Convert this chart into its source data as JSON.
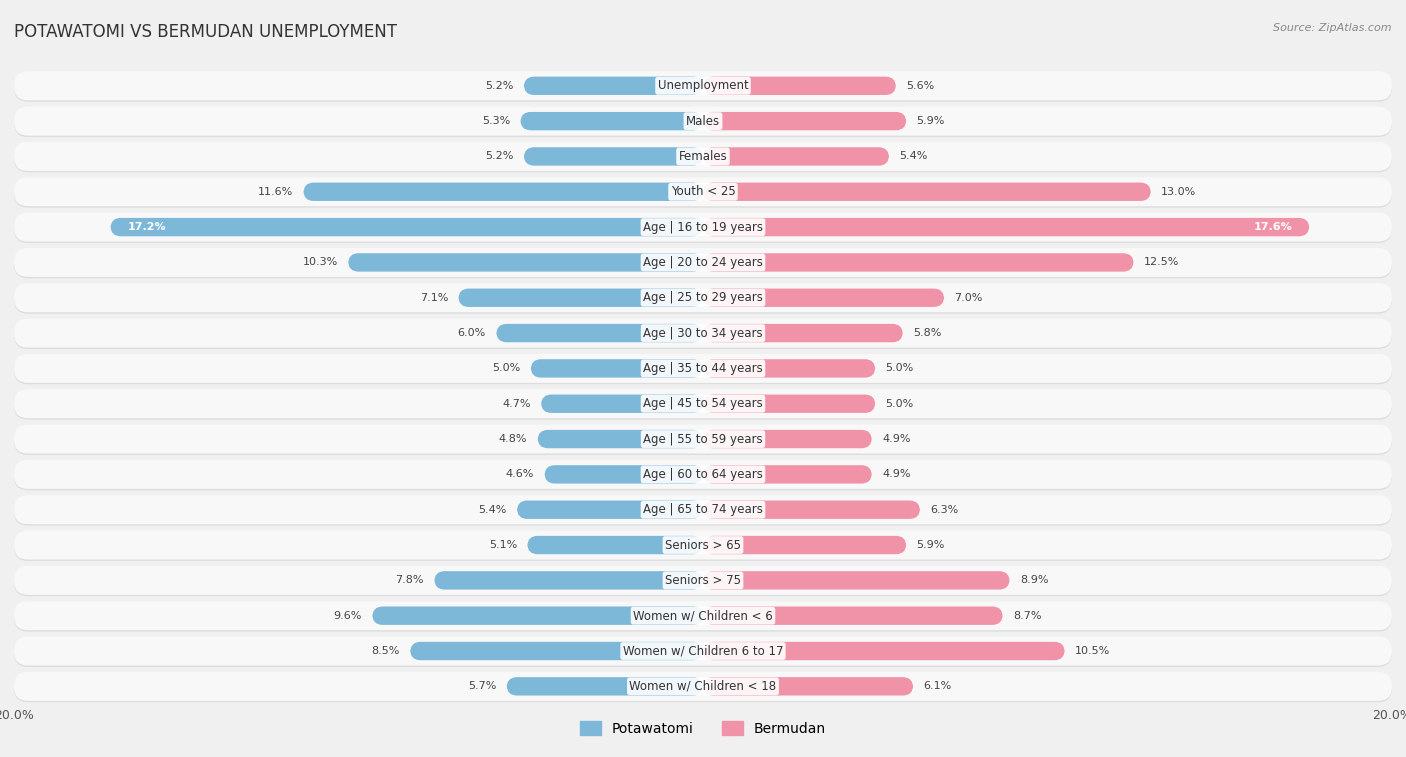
{
  "title": "POTAWATOMI VS BERMUDAN UNEMPLOYMENT",
  "source": "Source: ZipAtlas.com",
  "categories": [
    "Unemployment",
    "Males",
    "Females",
    "Youth < 25",
    "Age | 16 to 19 years",
    "Age | 20 to 24 years",
    "Age | 25 to 29 years",
    "Age | 30 to 34 years",
    "Age | 35 to 44 years",
    "Age | 45 to 54 years",
    "Age | 55 to 59 years",
    "Age | 60 to 64 years",
    "Age | 65 to 74 years",
    "Seniors > 65",
    "Seniors > 75",
    "Women w/ Children < 6",
    "Women w/ Children 6 to 17",
    "Women w/ Children < 18"
  ],
  "potawatomi": [
    5.2,
    5.3,
    5.2,
    11.6,
    17.2,
    10.3,
    7.1,
    6.0,
    5.0,
    4.7,
    4.8,
    4.6,
    5.4,
    5.1,
    7.8,
    9.6,
    8.5,
    5.7
  ],
  "bermudan": [
    5.6,
    5.9,
    5.4,
    13.0,
    17.6,
    12.5,
    7.0,
    5.8,
    5.0,
    5.0,
    4.9,
    4.9,
    6.3,
    5.9,
    8.9,
    8.7,
    10.5,
    6.1
  ],
  "potawatomi_color": "#7db8d8",
  "bermudan_color": "#f093a8",
  "max_val": 20.0,
  "bg_color": "#f0f0f0",
  "row_bg_color": "#f8f8f8",
  "row_shadow_color": "#dddddd",
  "label_fontsize": 8.5,
  "title_fontsize": 12,
  "value_fontsize": 8,
  "legend_fontsize": 10,
  "axis_label_fontsize": 9
}
